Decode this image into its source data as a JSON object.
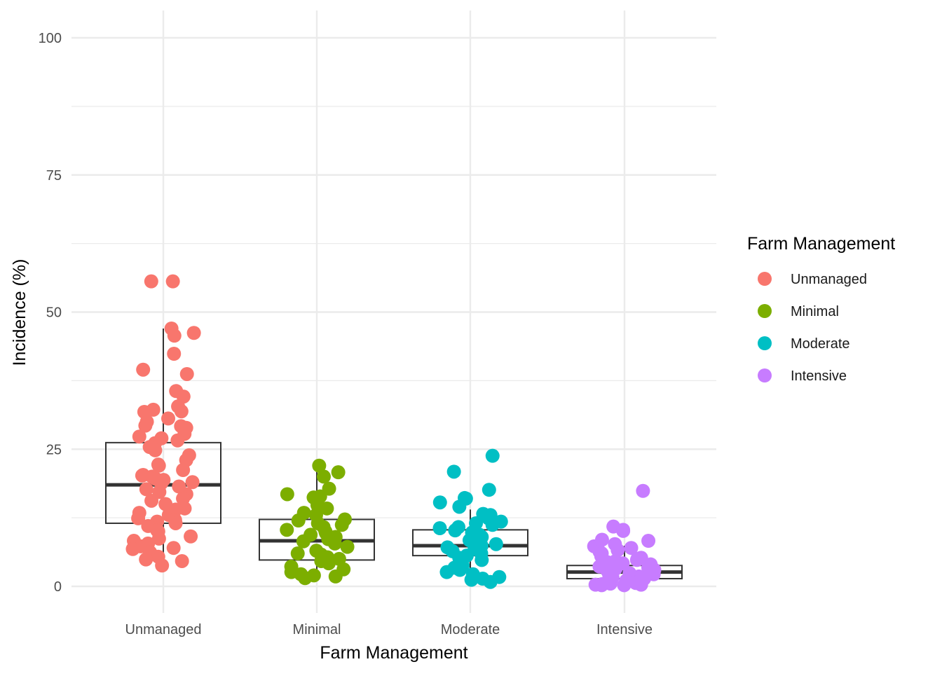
{
  "chart_data": {
    "type": "boxplot-jitter",
    "xlabel": "Farm Management",
    "ylabel": "Incidence (%)",
    "ylim": [
      -7,
      105
    ],
    "y_ticks": [
      0,
      25,
      50,
      75,
      100
    ],
    "grid": true,
    "legend": {
      "title": "Farm Management",
      "placement": "right",
      "entries": [
        "Unmanaged",
        "Minimal",
        "Moderate",
        "Intensive"
      ]
    },
    "categories": [
      "Unmanaged",
      "Minimal",
      "Moderate",
      "Intensive"
    ],
    "colors": {
      "Unmanaged": "#F8766D",
      "Minimal": "#7CAE00",
      "Moderate": "#00BFC4",
      "Intensive": "#C77CFF"
    },
    "boxes": [
      {
        "name": "Unmanaged",
        "whisker_low": 3.5,
        "q1": 11.5,
        "median": 18.5,
        "q3": 26.2,
        "whisker_high": 47
      },
      {
        "name": "Minimal",
        "whisker_low": 1.5,
        "q1": 4.8,
        "median": 8.3,
        "q3": 12.2,
        "whisker_high": 22
      },
      {
        "name": "Moderate",
        "whisker_low": 1.2,
        "q1": 5.6,
        "median": 7.4,
        "q3": 10.3,
        "whisker_high": 14
      },
      {
        "name": "Intensive",
        "whisker_low": 0.2,
        "q1": 1.4,
        "median": 2.6,
        "q3": 3.8,
        "whisker_high": 7.4
      }
    ],
    "points": [
      {
        "name": "Unmanaged",
        "values": [
          55.6,
          55.6,
          47,
          46.2,
          45.7,
          42.4,
          39.5,
          38.7,
          35.6,
          34.6,
          32.8,
          32.2,
          31.9,
          31.8,
          30.6,
          30,
          29.3,
          29.2,
          28.9,
          27.8,
          27.3,
          27,
          26.6,
          26.1,
          25.4,
          24.8,
          23.9,
          23,
          22.2,
          22,
          21.2,
          20.3,
          20.2,
          20,
          19.6,
          19.4,
          19,
          18.8,
          18.2,
          17.7,
          17.2,
          16.8,
          16,
          15.6,
          15,
          14.2,
          14,
          13.4,
          13,
          12.4,
          12.1,
          11.8,
          11.5,
          11,
          10.6,
          10.2,
          10,
          9.1,
          8.7,
          8.3,
          7.8,
          7.3,
          7,
          6.8,
          6.2,
          5.8,
          5.4,
          4.9,
          4.6,
          3.8
        ]
      },
      {
        "name": "Minimal",
        "values": [
          22,
          20.8,
          20,
          17.8,
          16.8,
          16.4,
          16.2,
          14.8,
          14.2,
          13.4,
          13,
          12.2,
          12,
          11.5,
          11.2,
          10.8,
          10.3,
          10,
          9.7,
          9.4,
          9,
          8.6,
          8.2,
          7.8,
          7.2,
          6.5,
          6,
          5.8,
          5.3,
          5,
          4.6,
          4.2,
          3.6,
          3.1,
          2.6,
          2.2,
          2,
          1.8,
          1.5
        ]
      },
      {
        "name": "Moderate",
        "values": [
          23.8,
          20.9,
          17.6,
          16.1,
          16,
          15.3,
          14.5,
          13.2,
          13,
          12.4,
          11.8,
          11.5,
          11.2,
          10.8,
          10.6,
          10.2,
          9.8,
          9.4,
          9,
          8.7,
          8.4,
          8,
          7.7,
          7.4,
          7.1,
          6.8,
          6.4,
          6,
          5.6,
          5.2,
          4.8,
          4.2,
          3.8,
          3.4,
          3,
          2.6,
          2.2,
          1.7,
          1.4,
          1.2,
          0.8
        ]
      },
      {
        "name": "Intensive",
        "values": [
          17.4,
          10.9,
          10.3,
          10.1,
          8.5,
          8.3,
          7.7,
          7.3,
          7,
          6.6,
          6.3,
          6,
          5.8,
          5.5,
          5.2,
          5,
          4.8,
          4.6,
          4.4,
          4.2,
          4,
          3.8,
          3.6,
          3.4,
          3.2,
          3,
          2.8,
          2.6,
          2.4,
          2.2,
          2,
          1.8,
          1.6,
          1.4,
          1.2,
          1,
          0.9,
          0.8,
          0.7,
          0.6,
          0.5,
          0.4,
          0.3,
          0.3,
          0.2,
          0.2
        ]
      }
    ]
  }
}
